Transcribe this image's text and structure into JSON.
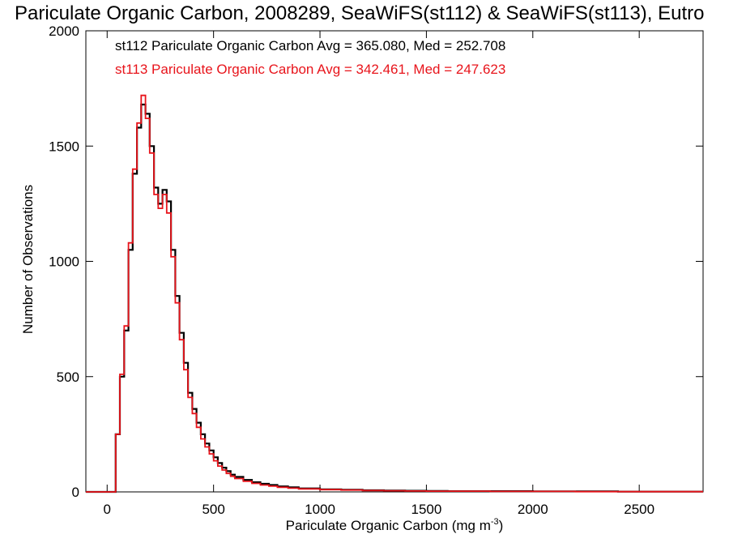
{
  "chart_data": {
    "type": "histogram",
    "title": "Pariculate Organic Carbon, 2008289, SeaWiFS(st112) & SeaWiFS(st113), Eutro",
    "xlabel_main": "Pariculate Organic Carbon (mg m",
    "xlabel_sup": "-3",
    "xlabel_close": ")",
    "ylabel": "Number of Observations",
    "xlim": [
      -100,
      2800
    ],
    "ylim": [
      0,
      2000
    ],
    "x_ticks": [
      0,
      500,
      1000,
      1500,
      2000,
      2500
    ],
    "y_ticks": [
      0,
      500,
      1000,
      1500,
      2000
    ],
    "grid": false,
    "legend_position": "top-left",
    "series": [
      {
        "name": "st112",
        "label": "st112 Pariculate Organic Carbon Avg = 365.080, Med = 252.708",
        "color": "#000000",
        "x": [
          -100,
          20,
          40,
          60,
          80,
          100,
          120,
          140,
          160,
          180,
          200,
          220,
          240,
          260,
          280,
          300,
          320,
          340,
          360,
          380,
          400,
          420,
          440,
          460,
          480,
          500,
          520,
          540,
          560,
          580,
          600,
          640,
          680,
          720,
          760,
          800,
          850,
          900,
          1000,
          1100,
          1200,
          1300,
          1400,
          1500,
          1600,
          1800,
          2000,
          2200,
          2400,
          2600,
          2800
        ],
        "y": [
          0,
          0,
          250,
          500,
          700,
          1050,
          1380,
          1580,
          1680,
          1640,
          1500,
          1320,
          1250,
          1310,
          1260,
          1050,
          850,
          690,
          560,
          430,
          360,
          300,
          250,
          210,
          180,
          150,
          125,
          105,
          90,
          75,
          65,
          52,
          42,
          35,
          30,
          24,
          20,
          15,
          11,
          9,
          7,
          6,
          5,
          4,
          3,
          3,
          2,
          2,
          1,
          1,
          0
        ]
      },
      {
        "name": "st113",
        "label": "st113 Pariculate Organic Carbon Avg = 342.461, Med = 247.623",
        "color": "#e8141b",
        "x": [
          -100,
          20,
          40,
          60,
          80,
          100,
          120,
          140,
          160,
          180,
          200,
          220,
          240,
          260,
          280,
          300,
          320,
          340,
          360,
          380,
          400,
          420,
          440,
          460,
          480,
          500,
          520,
          540,
          560,
          580,
          600,
          640,
          680,
          720,
          760,
          800,
          850,
          900,
          1000,
          1100,
          1200,
          1300,
          1400,
          1500,
          1600,
          1800,
          2000,
          2200,
          2400,
          2600,
          2800
        ],
        "y": [
          0,
          0,
          250,
          510,
          720,
          1080,
          1400,
          1600,
          1720,
          1620,
          1470,
          1290,
          1230,
          1290,
          1210,
          1020,
          820,
          660,
          530,
          410,
          340,
          280,
          230,
          195,
          165,
          135,
          112,
          95,
          80,
          68,
          58,
          46,
          37,
          30,
          25,
          20,
          16,
          13,
          10,
          8,
          6,
          5,
          4,
          3,
          3,
          2,
          2,
          1,
          1,
          1,
          0
        ]
      }
    ]
  }
}
